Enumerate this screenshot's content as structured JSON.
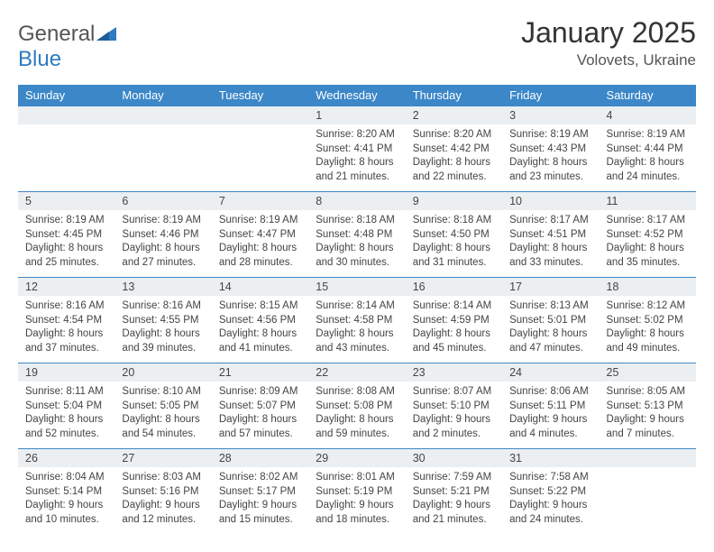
{
  "brand": {
    "name_a": "General",
    "name_b": "Blue"
  },
  "title": "January 2025",
  "location": "Volovets, Ukraine",
  "colors": {
    "header_bg": "#3b87c8",
    "header_text": "#ffffff",
    "daynum_bg": "#eceff1",
    "rule": "#3b87c8",
    "brand_blue": "#2f7ac0",
    "text": "#444444"
  },
  "dayNames": [
    "Sunday",
    "Monday",
    "Tuesday",
    "Wednesday",
    "Thursday",
    "Friday",
    "Saturday"
  ],
  "weeks": [
    [
      null,
      null,
      null,
      {
        "d": "1",
        "sr": "8:20 AM",
        "ss": "4:41 PM",
        "dl": "8 hours and 21 minutes."
      },
      {
        "d": "2",
        "sr": "8:20 AM",
        "ss": "4:42 PM",
        "dl": "8 hours and 22 minutes."
      },
      {
        "d": "3",
        "sr": "8:19 AM",
        "ss": "4:43 PM",
        "dl": "8 hours and 23 minutes."
      },
      {
        "d": "4",
        "sr": "8:19 AM",
        "ss": "4:44 PM",
        "dl": "8 hours and 24 minutes."
      }
    ],
    [
      {
        "d": "5",
        "sr": "8:19 AM",
        "ss": "4:45 PM",
        "dl": "8 hours and 25 minutes."
      },
      {
        "d": "6",
        "sr": "8:19 AM",
        "ss": "4:46 PM",
        "dl": "8 hours and 27 minutes."
      },
      {
        "d": "7",
        "sr": "8:19 AM",
        "ss": "4:47 PM",
        "dl": "8 hours and 28 minutes."
      },
      {
        "d": "8",
        "sr": "8:18 AM",
        "ss": "4:48 PM",
        "dl": "8 hours and 30 minutes."
      },
      {
        "d": "9",
        "sr": "8:18 AM",
        "ss": "4:50 PM",
        "dl": "8 hours and 31 minutes."
      },
      {
        "d": "10",
        "sr": "8:17 AM",
        "ss": "4:51 PM",
        "dl": "8 hours and 33 minutes."
      },
      {
        "d": "11",
        "sr": "8:17 AM",
        "ss": "4:52 PM",
        "dl": "8 hours and 35 minutes."
      }
    ],
    [
      {
        "d": "12",
        "sr": "8:16 AM",
        "ss": "4:54 PM",
        "dl": "8 hours and 37 minutes."
      },
      {
        "d": "13",
        "sr": "8:16 AM",
        "ss": "4:55 PM",
        "dl": "8 hours and 39 minutes."
      },
      {
        "d": "14",
        "sr": "8:15 AM",
        "ss": "4:56 PM",
        "dl": "8 hours and 41 minutes."
      },
      {
        "d": "15",
        "sr": "8:14 AM",
        "ss": "4:58 PM",
        "dl": "8 hours and 43 minutes."
      },
      {
        "d": "16",
        "sr": "8:14 AM",
        "ss": "4:59 PM",
        "dl": "8 hours and 45 minutes."
      },
      {
        "d": "17",
        "sr": "8:13 AM",
        "ss": "5:01 PM",
        "dl": "8 hours and 47 minutes."
      },
      {
        "d": "18",
        "sr": "8:12 AM",
        "ss": "5:02 PM",
        "dl": "8 hours and 49 minutes."
      }
    ],
    [
      {
        "d": "19",
        "sr": "8:11 AM",
        "ss": "5:04 PM",
        "dl": "8 hours and 52 minutes."
      },
      {
        "d": "20",
        "sr": "8:10 AM",
        "ss": "5:05 PM",
        "dl": "8 hours and 54 minutes."
      },
      {
        "d": "21",
        "sr": "8:09 AM",
        "ss": "5:07 PM",
        "dl": "8 hours and 57 minutes."
      },
      {
        "d": "22",
        "sr": "8:08 AM",
        "ss": "5:08 PM",
        "dl": "8 hours and 59 minutes."
      },
      {
        "d": "23",
        "sr": "8:07 AM",
        "ss": "5:10 PM",
        "dl": "9 hours and 2 minutes."
      },
      {
        "d": "24",
        "sr": "8:06 AM",
        "ss": "5:11 PM",
        "dl": "9 hours and 4 minutes."
      },
      {
        "d": "25",
        "sr": "8:05 AM",
        "ss": "5:13 PM",
        "dl": "9 hours and 7 minutes."
      }
    ],
    [
      {
        "d": "26",
        "sr": "8:04 AM",
        "ss": "5:14 PM",
        "dl": "9 hours and 10 minutes."
      },
      {
        "d": "27",
        "sr": "8:03 AM",
        "ss": "5:16 PM",
        "dl": "9 hours and 12 minutes."
      },
      {
        "d": "28",
        "sr": "8:02 AM",
        "ss": "5:17 PM",
        "dl": "9 hours and 15 minutes."
      },
      {
        "d": "29",
        "sr": "8:01 AM",
        "ss": "5:19 PM",
        "dl": "9 hours and 18 minutes."
      },
      {
        "d": "30",
        "sr": "7:59 AM",
        "ss": "5:21 PM",
        "dl": "9 hours and 21 minutes."
      },
      {
        "d": "31",
        "sr": "7:58 AM",
        "ss": "5:22 PM",
        "dl": "9 hours and 24 minutes."
      },
      null
    ]
  ],
  "labels": {
    "sunrise": "Sunrise:",
    "sunset": "Sunset:",
    "daylight": "Daylight:"
  }
}
